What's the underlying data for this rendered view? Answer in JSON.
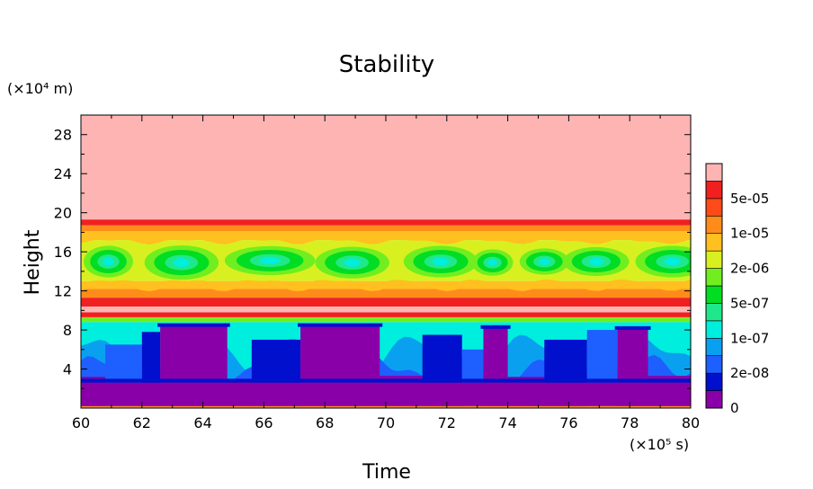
{
  "chart_data": {
    "type": "heatmap",
    "title": "Stability",
    "xlabel": "Time",
    "ylabel": "Height",
    "x_unit_label": "(×10⁵ s)",
    "y_unit_label": "(×10⁴ m)",
    "xlim": [
      60,
      80
    ],
    "ylim": [
      0,
      30
    ],
    "x_ticks": [
      "60",
      "62",
      "64",
      "66",
      "68",
      "70",
      "72",
      "74",
      "76",
      "78",
      "80"
    ],
    "y_ticks": [
      "4",
      "8",
      "12",
      "16",
      "20",
      "24",
      "28"
    ],
    "colorbar": {
      "labels": [
        "0",
        "2e-08",
        "1e-07",
        "5e-07",
        "2e-06",
        "1e-05",
        "5e-05"
      ],
      "colors": [
        "#8a00a8",
        "#0010cc",
        "#1e5fff",
        "#0aa0f0",
        "#00eedd",
        "#20e88a",
        "#00dd22",
        "#70ee20",
        "#d8f020",
        "#ffc020",
        "#ff8c1a",
        "#ff4a1a",
        "#f02020",
        "#ffb4b4"
      ]
    },
    "bands": [
      {
        "y0": 19.3,
        "y1": 30,
        "color": "#ffb4b4"
      },
      {
        "y0": 18.7,
        "y1": 19.3,
        "color": "#f02020"
      },
      {
        "y0": 18.1,
        "y1": 18.7,
        "color": "#ff8c1a"
      },
      {
        "y0": 17.2,
        "y1": 18.1,
        "color": "#ffc020"
      },
      {
        "y0": 13.0,
        "y1": 17.2,
        "color": "#d8f020"
      },
      {
        "y0": 12.2,
        "y1": 13.0,
        "color": "#ffc020"
      },
      {
        "y0": 11.3,
        "y1": 12.2,
        "color": "#ff8c1a"
      },
      {
        "y0": 10.4,
        "y1": 11.3,
        "color": "#f02020"
      },
      {
        "y0": 9.8,
        "y1": 10.4,
        "color": "#ffb4b4"
      },
      {
        "y0": 9.3,
        "y1": 9.8,
        "color": "#f02020"
      },
      {
        "y0": 8.8,
        "y1": 9.3,
        "color": "#70ee20"
      },
      {
        "y0": 0.2,
        "y1": 8.8,
        "color": "#00eedd"
      },
      {
        "y0": 0,
        "y1": 0.2,
        "color": "#70ee20"
      }
    ],
    "upper_blobs": [
      {
        "x": 60.9,
        "y": 15.0,
        "rx": 0.6,
        "ry": 1.2
      },
      {
        "x": 63.3,
        "y": 14.9,
        "rx": 0.9,
        "ry": 1.3
      },
      {
        "x": 66.2,
        "y": 15.1,
        "rx": 1.1,
        "ry": 1.1
      },
      {
        "x": 68.9,
        "y": 14.9,
        "rx": 0.9,
        "ry": 1.2
      },
      {
        "x": 71.8,
        "y": 15.0,
        "rx": 0.9,
        "ry": 1.2
      },
      {
        "x": 73.5,
        "y": 14.9,
        "rx": 0.5,
        "ry": 1.0
      },
      {
        "x": 75.2,
        "y": 15.0,
        "rx": 0.6,
        "ry": 1.0
      },
      {
        "x": 76.9,
        "y": 15.0,
        "rx": 0.8,
        "ry": 1.1
      },
      {
        "x": 79.4,
        "y": 15.0,
        "rx": 0.9,
        "ry": 1.2
      }
    ],
    "lower_columns": [
      {
        "x0": 60.0,
        "x1": 60.8,
        "top": 3.2,
        "color": "#8a00a8"
      },
      {
        "x0": 60.8,
        "x1": 62.0,
        "top": 6.5,
        "color": "#1e5fff"
      },
      {
        "x0": 62.0,
        "x1": 62.6,
        "top": 7.8,
        "color": "#0010cc"
      },
      {
        "x0": 62.6,
        "x1": 64.8,
        "top": 8.5,
        "color": "#8a00a8"
      },
      {
        "x0": 64.8,
        "x1": 65.6,
        "top": 3.0,
        "color": "#8a00a8"
      },
      {
        "x0": 65.6,
        "x1": 67.2,
        "top": 7.0,
        "color": "#0010cc"
      },
      {
        "x0": 67.2,
        "x1": 69.8,
        "top": 8.5,
        "color": "#8a00a8"
      },
      {
        "x0": 69.8,
        "x1": 71.2,
        "top": 3.3,
        "color": "#8a00a8"
      },
      {
        "x0": 71.2,
        "x1": 72.5,
        "top": 7.5,
        "color": "#0010cc"
      },
      {
        "x0": 72.5,
        "x1": 73.2,
        "top": 6.0,
        "color": "#1e5fff"
      },
      {
        "x0": 73.2,
        "x1": 74.0,
        "top": 8.3,
        "color": "#8a00a8"
      },
      {
        "x0": 74.0,
        "x1": 75.2,
        "top": 3.2,
        "color": "#8a00a8"
      },
      {
        "x0": 75.2,
        "x1": 76.6,
        "top": 7.0,
        "color": "#0010cc"
      },
      {
        "x0": 76.6,
        "x1": 77.6,
        "top": 8.0,
        "color": "#1e5fff"
      },
      {
        "x0": 77.6,
        "x1": 78.6,
        "top": 8.2,
        "color": "#8a00a8"
      },
      {
        "x0": 78.6,
        "x1": 80.0,
        "top": 3.3,
        "color": "#8a00a8"
      }
    ],
    "purple_floor_top": 2.6
  }
}
